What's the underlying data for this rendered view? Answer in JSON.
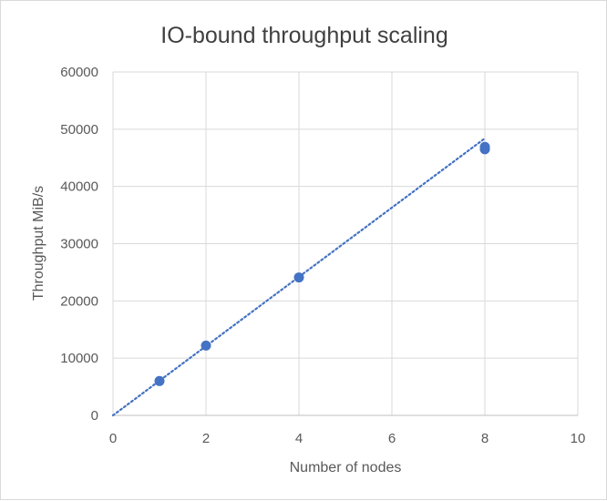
{
  "chart_data": {
    "type": "scatter",
    "title": "IO-bound throughput scaling",
    "xlabel": "Number of nodes",
    "ylabel": "Throughput MiB/s",
    "xlim": [
      0,
      10
    ],
    "ylim": [
      0,
      60000
    ],
    "x_ticks": [
      "0",
      "2",
      "4",
      "6",
      "8",
      "10"
    ],
    "y_ticks": [
      "0",
      "10000",
      "20000",
      "30000",
      "40000",
      "50000",
      "60000"
    ],
    "grid": true,
    "legend": "none",
    "series": [
      {
        "points": [
          {
            "x": 1,
            "y": 6000
          },
          {
            "x": 2,
            "y": 12200
          },
          {
            "x": 4,
            "y": 24100
          },
          {
            "x": 8,
            "y": 46500
          },
          {
            "x": 8,
            "y": 46900
          }
        ],
        "color": "#4472c4"
      }
    ],
    "trendline": {
      "type": "linear",
      "style": "dotted",
      "color": "#4472c4",
      "from": {
        "x": 0,
        "y": 0
      },
      "to": {
        "x": 8,
        "y": 48400
      }
    }
  }
}
